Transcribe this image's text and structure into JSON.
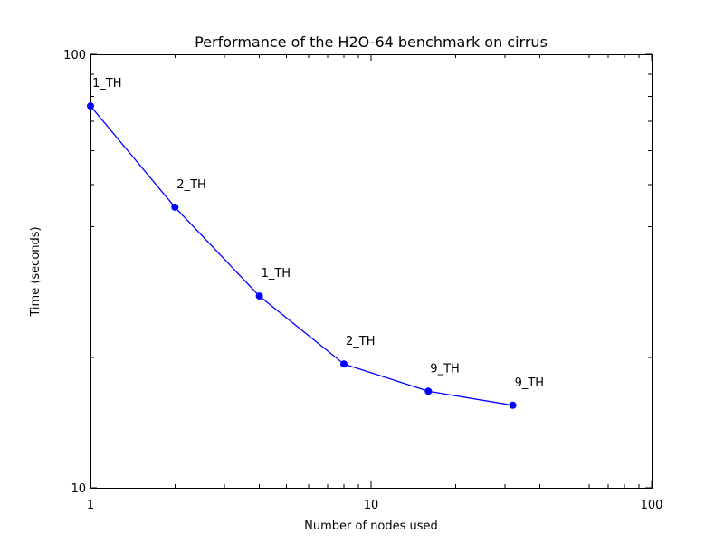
{
  "figure": {
    "background": "#ffffff",
    "foreground": "#000000"
  },
  "chart_data": {
    "type": "line",
    "title": "Performance of the H2O-64 benchmark on cirrus",
    "xlabel": "Number of nodes used",
    "ylabel": "Time (seconds)",
    "x_scale": "log",
    "y_scale": "log",
    "xlim": [
      1,
      100
    ],
    "ylim": [
      10,
      100
    ],
    "x_tick_labels": [
      "1",
      "10",
      "100"
    ],
    "x_ticks": [
      1,
      10,
      100
    ],
    "y_tick_labels": [
      "10",
      "100"
    ],
    "y_ticks": [
      10,
      100
    ],
    "grid": false,
    "legend": "none",
    "series": [
      {
        "name": "H2O-64 benchmark time",
        "line_color": "#0000ff",
        "marker": "circle",
        "marker_color": "#0000ff",
        "x": [
          1,
          2,
          4,
          8,
          16,
          32
        ],
        "y": [
          76.0,
          44.4,
          27.7,
          19.3,
          16.7,
          15.5
        ],
        "point_labels": [
          "1_TH",
          "2_TH",
          "1_TH",
          "2_TH",
          "9_TH",
          "9_TH"
        ]
      }
    ]
  }
}
